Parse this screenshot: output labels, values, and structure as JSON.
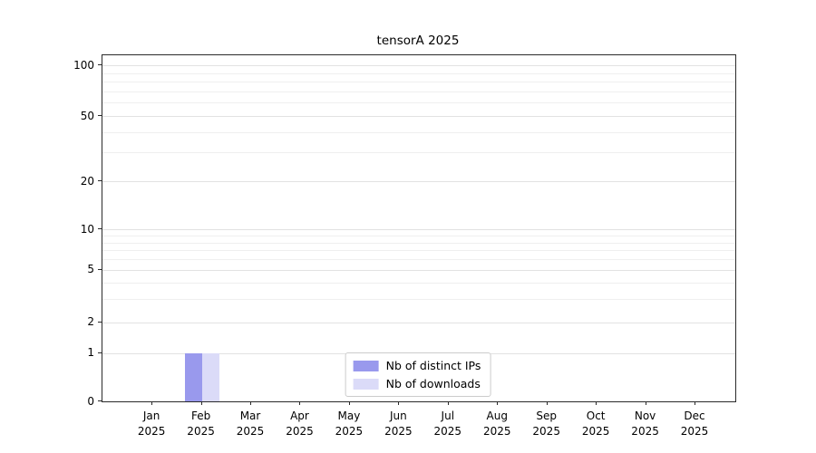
{
  "chart_data": {
    "type": "bar",
    "title": "tensorA 2025",
    "x_months": [
      "Jan",
      "Feb",
      "Mar",
      "Apr",
      "May",
      "Jun",
      "Jul",
      "Aug",
      "Sep",
      "Oct",
      "Nov",
      "Dec"
    ],
    "x_year": "2025",
    "series": [
      {
        "name": "Nb of distinct IPs",
        "color": "#9999ed",
        "values": [
          0,
          1,
          0,
          0,
          0,
          0,
          0,
          0,
          0,
          0,
          0,
          0
        ]
      },
      {
        "name": "Nb of downloads",
        "color": "#dbdbf8",
        "values": [
          0,
          1,
          0,
          0,
          0,
          0,
          0,
          0,
          0,
          0,
          0,
          0
        ]
      }
    ],
    "yticks": [
      0,
      1,
      2,
      5,
      10,
      20,
      50,
      100
    ],
    "minor_grid_values": [
      3,
      4,
      6,
      7,
      8,
      9,
      30,
      40,
      60,
      70,
      80,
      90
    ],
    "scale": "symlog",
    "grid": "horizontal",
    "legend_position": "lower center"
  }
}
